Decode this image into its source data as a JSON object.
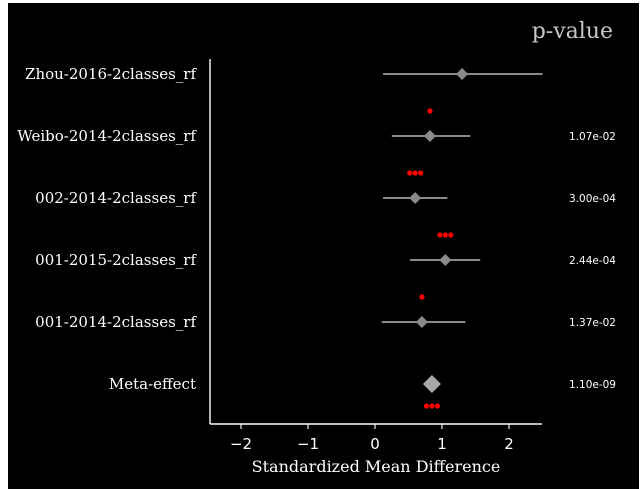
{
  "chart_data": {
    "type": "forest",
    "xlabel": "Standardized Mean Difference",
    "xlim": [
      -2.5,
      2.5
    ],
    "xticks": [
      -2,
      -1,
      0,
      1,
      2
    ],
    "xtick_labels": [
      "−2",
      "−1",
      "0",
      "1",
      "2"
    ],
    "pvalue_header": "p-value",
    "rows": [
      {
        "label": "Zhou-2016-2classes_rf",
        "estimate": 1.3,
        "ci": [
          0.12,
          2.5
        ],
        "pvalue": "",
        "significance": 0
      },
      {
        "label": "Weibo-2014-2classes_rf",
        "estimate": 0.82,
        "ci": [
          0.25,
          1.42
        ],
        "pvalue": "1.07e-02",
        "significance": 1
      },
      {
        "label": "002-2014-2classes_rf",
        "estimate": 0.6,
        "ci": [
          0.12,
          1.08
        ],
        "pvalue": "3.00e-04",
        "significance": 3
      },
      {
        "label": "001-2015-2classes_rf",
        "estimate": 1.05,
        "ci": [
          0.52,
          1.57
        ],
        "pvalue": "2.44e-04",
        "significance": 3
      },
      {
        "label": "001-2014-2classes_rf",
        "estimate": 0.7,
        "ci": [
          0.1,
          1.35
        ],
        "pvalue": "1.37e-02",
        "significance": 1
      },
      {
        "label": "Meta-effect",
        "estimate": 0.85,
        "ci": [
          0.85,
          0.85
        ],
        "pvalue": "1.10e-09",
        "significance": 3,
        "meta": true
      }
    ],
    "colors": {
      "background": "#000000",
      "axes": "#ffffff",
      "marker": "#8a8a8a",
      "meta_marker": "#a8a8a8",
      "significance_dot": "#ff0000"
    }
  }
}
